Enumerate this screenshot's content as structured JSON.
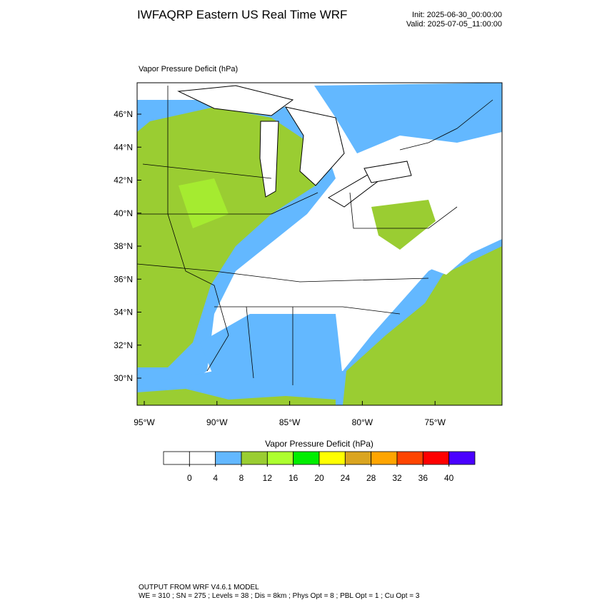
{
  "header": {
    "title": "IWFAQRP Eastern US Real Time WRF",
    "init": "Init: 2025-06-30_00:00:00",
    "valid": "Valid: 2025-07-05_11:00:00"
  },
  "map": {
    "label": "Vapor Pressure Deficit   (hPa)",
    "lat_labels": [
      "46°N",
      "44°N",
      "42°N",
      "40°N",
      "38°N",
      "36°N",
      "34°N",
      "32°N",
      "30°N"
    ],
    "lon_labels": [
      "95°W",
      "90°W",
      "85°W",
      "80°W",
      "75°W"
    ]
  },
  "colorbar": {
    "title": "Vapor Pressure Deficit  (hPa)",
    "levels": [
      0,
      4,
      8,
      12,
      16,
      20,
      24,
      28,
      32,
      36,
      40
    ],
    "colors": [
      "#ffffff",
      "#ffffff",
      "#63b8ff",
      "#9acd32",
      "#adff2f",
      "#00ee00",
      "#ffff00",
      "#daa520",
      "#ffa500",
      "#ff4500",
      "#ff0000",
      "#4a00ff"
    ]
  },
  "footer": {
    "line1": "OUTPUT FROM WRF V4.6.1 MODEL",
    "line2": "WE = 310 ; SN = 275 ; Levels = 38 ; Dis = 8km ; Phys Opt = 8 ; PBL Opt = 1 ; Cu Opt = 3"
  }
}
